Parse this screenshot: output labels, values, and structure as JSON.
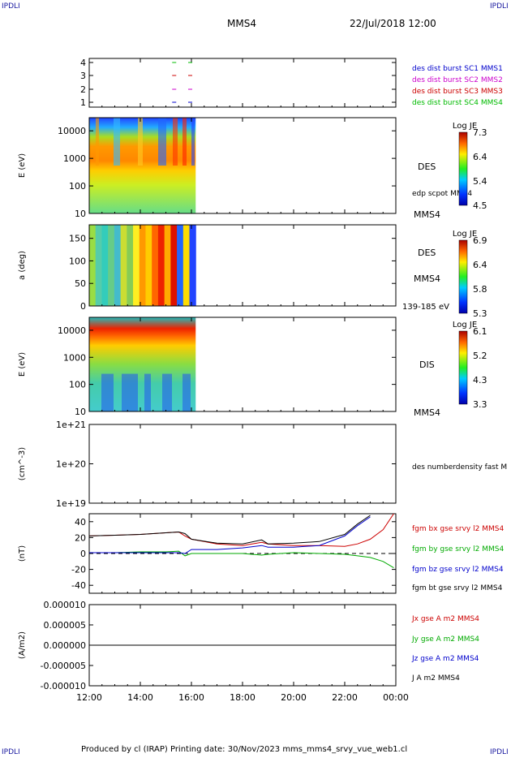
{
  "header": {
    "corner_tl": "IPDLI",
    "corner_tr": "IPDLI",
    "corner_bl": "IPDLI",
    "corner_br": "IPDLI",
    "spacecraft": "MMS4",
    "datetime": "22/Jul/2018 12:00"
  },
  "footer": {
    "text": "Produced by cl (IRAP)   Printing date: 30/Nov/2023   mms_mms4_srvy_vue_web1.cl"
  },
  "colors": {
    "mms1": "#0000cc",
    "mms2": "#cc00cc",
    "mms3": "#cc0000",
    "mms4": "#00bb00",
    "bx": "#cc0000",
    "by": "#00aa00",
    "bz": "#0000cc",
    "bt": "#000000"
  },
  "x_axis": {
    "ticks": [
      "12:00",
      "14:00",
      "16:00",
      "18:00",
      "20:00",
      "22:00",
      "00:00"
    ]
  },
  "chart_data": [
    {
      "type": "scatter",
      "panel": "burst availability",
      "y_ticks": [
        "4",
        "3",
        "2",
        "1"
      ],
      "series": [
        {
          "name": "des dist burst SC1 MMS1",
          "y": 1,
          "x": [
            "15:30",
            "16:00"
          ]
        },
        {
          "name": "des dist burst SC2 MMS2",
          "y": 2,
          "x": [
            "15:30",
            "16:00"
          ]
        },
        {
          "name": "des dist burst SC3 MMS3",
          "y": 3,
          "x": [
            "15:30",
            "16:00"
          ]
        },
        {
          "name": "des dist burst SC4 MMS4",
          "y": 4,
          "x": [
            "15:30",
            "16:00"
          ]
        }
      ]
    },
    {
      "type": "heatmap",
      "panel": "DES energy spectrogram",
      "ylabel": "E (eV)",
      "y_scale": "log",
      "ylim": [
        10,
        30000
      ],
      "y_ticks": [
        "10000",
        "1000",
        "100",
        "10"
      ],
      "data_x_range": [
        "12:00",
        "16:10"
      ],
      "instrument": "DES",
      "colorbar": {
        "title": "Log JE",
        "ticks": [
          "7.3",
          "6.4",
          "5.4",
          "4.5"
        ],
        "range": [
          4.5,
          7.3
        ]
      },
      "overlay_label": "edp scpot MMS4",
      "bottom_label": "MMS4"
    },
    {
      "type": "heatmap",
      "panel": "DES pitch angle",
      "ylabel": "a (deg)",
      "ylim": [
        0,
        180
      ],
      "y_ticks": [
        "150",
        "100",
        "50",
        "0"
      ],
      "data_x_range": [
        "12:00",
        "16:10"
      ],
      "instrument": "DES",
      "spacecraft_label": "MMS4",
      "energy_band": "139-185 eV",
      "colorbar": {
        "title": "Log JE",
        "ticks": [
          "6.9",
          "6.4",
          "5.8",
          "5.3"
        ],
        "range": [
          5.3,
          6.9
        ]
      }
    },
    {
      "type": "heatmap",
      "panel": "DIS energy spectrogram",
      "ylabel": "E (eV)",
      "y_scale": "log",
      "ylim": [
        10,
        30000
      ],
      "y_ticks": [
        "10000",
        "1000",
        "100",
        "10"
      ],
      "data_x_range": [
        "12:00",
        "16:10"
      ],
      "instrument": "DIS",
      "colorbar": {
        "title": "Log JE",
        "ticks": [
          "6.1",
          "5.2",
          "4.3",
          "3.3"
        ],
        "range": [
          3.3,
          6.1
        ]
      },
      "bottom_label": "MMS4"
    },
    {
      "type": "line",
      "panel": "density",
      "ylabel": "(cm^-3)",
      "y_scale": "log",
      "y_ticks": [
        "1e+21",
        "1e+20",
        "1e+19"
      ],
      "series": [
        {
          "name": "des numberdensity fast M",
          "x": [],
          "y": []
        }
      ]
    },
    {
      "type": "line",
      "panel": "magnetic field",
      "ylabel": "(nT)",
      "ylim": [
        -50,
        50
      ],
      "y_ticks": [
        "40",
        "20",
        "0",
        "-20",
        "-40"
      ],
      "x": [
        "12:00",
        "13:00",
        "14:00",
        "15:00",
        "15:30",
        "15:45",
        "16:00",
        "17:00",
        "18:00",
        "18:45",
        "19:00",
        "20:00",
        "21:00",
        "22:00",
        "22:30",
        "23:00",
        "23:30",
        "23:55"
      ],
      "series": [
        {
          "name": "fgm bx gse srvy l2 MMS4",
          "values": [
            22,
            23,
            24,
            26,
            27,
            22,
            18,
            12,
            10,
            14,
            12,
            10,
            10,
            9,
            12,
            18,
            30,
            50
          ]
        },
        {
          "name": "fgm by gse srvy l2 MMS4",
          "values": [
            1,
            1,
            2,
            2,
            3,
            -3,
            0,
            0,
            0,
            -2,
            -1,
            1,
            0,
            -1,
            -3,
            -5,
            -10,
            -18
          ]
        },
        {
          "name": "fgm bz gse srvy l2 MMS4",
          "values": [
            1,
            1,
            1,
            1,
            1,
            0,
            5,
            5,
            7,
            10,
            8,
            8,
            10,
            22,
            35,
            46,
            null,
            null
          ]
        },
        {
          "name": "fgm bt gse srvy l2 MMS4",
          "values": [
            22,
            23,
            24,
            26,
            27,
            25,
            18,
            13,
            12,
            17,
            12,
            13,
            15,
            24,
            37,
            48,
            null,
            null
          ]
        }
      ]
    },
    {
      "type": "line",
      "panel": "current density",
      "ylabel": "(A/m2)",
      "ylim": [
        -1e-05,
        1e-05
      ],
      "y_ticks": [
        "0.000010",
        "0.000005",
        "0.000000",
        "-0.000005",
        "-0.000010"
      ],
      "series": [
        {
          "name": "Jx gse A m2 MMS4",
          "values": [
            0,
            0,
            0,
            0,
            0,
            0,
            0
          ]
        },
        {
          "name": "Jy gse A m2 MMS4",
          "values": [
            0,
            0,
            0,
            0,
            0,
            0,
            0
          ]
        },
        {
          "name": "Jz gse A m2 MMS4",
          "values": [
            0,
            0,
            0,
            0,
            0,
            0,
            0
          ]
        },
        {
          "name": "J A m2 MMS4",
          "values": [
            0,
            0,
            0,
            0,
            0,
            0,
            0
          ]
        }
      ]
    }
  ]
}
